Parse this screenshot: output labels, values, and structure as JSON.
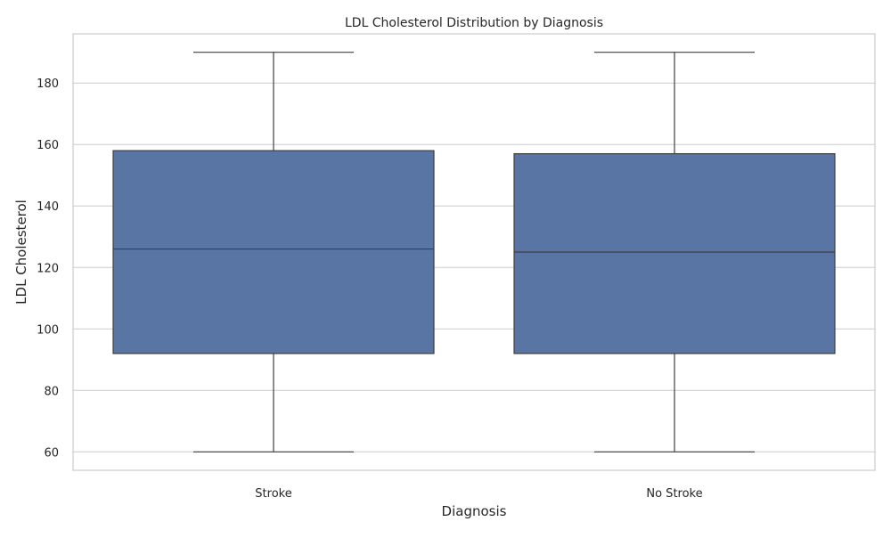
{
  "chart_data": {
    "type": "box",
    "title": "LDL Cholesterol Distribution by Diagnosis",
    "xlabel": "Diagnosis",
    "ylabel": "LDL Cholesterol",
    "categories": [
      "Stroke",
      "No Stroke"
    ],
    "boxes": [
      {
        "category": "Stroke",
        "min": 60,
        "q1": 92,
        "median": 126,
        "q3": 158,
        "max": 190
      },
      {
        "category": "No Stroke",
        "min": 60,
        "q1": 92,
        "median": 125,
        "q3": 157,
        "max": 190
      }
    ],
    "yticks": [
      60,
      80,
      100,
      120,
      140,
      160,
      180
    ],
    "ylim": [
      54,
      196
    ],
    "grid": true,
    "box_color": "#5975a4",
    "line_color": "#3f3f3f"
  }
}
